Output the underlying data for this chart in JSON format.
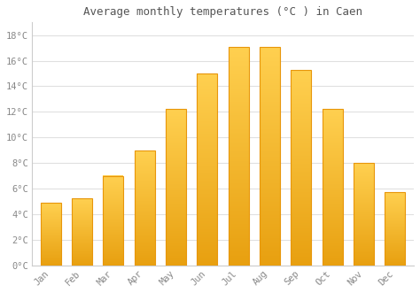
{
  "title": "Average monthly temperatures (°C ) in Caen",
  "months": [
    "Jan",
    "Feb",
    "Mar",
    "Apr",
    "May",
    "Jun",
    "Jul",
    "Aug",
    "Sep",
    "Oct",
    "Nov",
    "Dec"
  ],
  "values": [
    4.9,
    5.2,
    7.0,
    9.0,
    12.2,
    15.0,
    17.1,
    17.1,
    15.3,
    12.2,
    8.0,
    5.7
  ],
  "bar_color_top": "#FFC020",
  "bar_color_bottom": "#F5A800",
  "bar_edge_color": "#E8960A",
  "background_color": "#FFFFFF",
  "plot_bg_color": "#FFFFFF",
  "grid_color": "#E0E0E0",
  "text_color": "#888888",
  "title_color": "#555555",
  "axis_line_color": "#CCCCCC",
  "ylim": [
    0,
    19
  ],
  "yticks": [
    0,
    2,
    4,
    6,
    8,
    10,
    12,
    14,
    16,
    18
  ],
  "ytick_labels": [
    "0°C",
    "2°C",
    "4°C",
    "6°C",
    "8°C",
    "10°C",
    "12°C",
    "14°C",
    "16°C",
    "18°C"
  ]
}
